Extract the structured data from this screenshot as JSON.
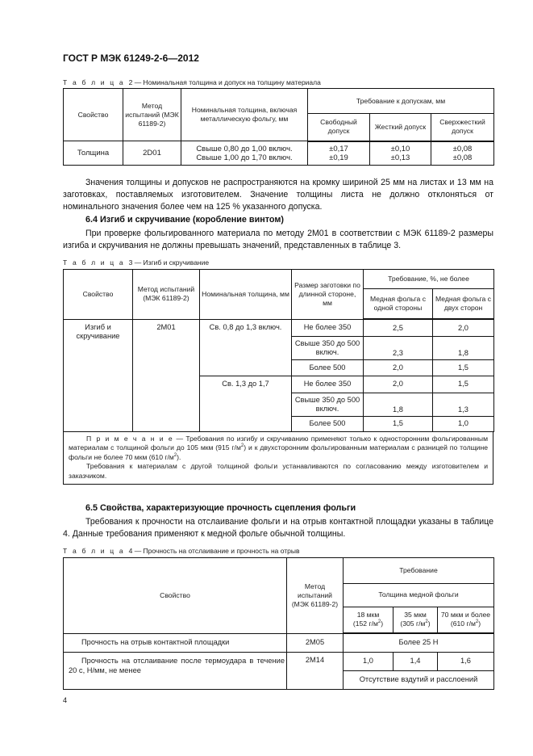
{
  "header": {
    "title": "ГОСТ Р МЭК 61249-2-6—2012"
  },
  "table2": {
    "caption_prefix": "Т а б л и ц а",
    "caption": "2 — Номинальная толщина и допуск на толщину материала",
    "headers": {
      "property": "Свойство",
      "method": "Метод испытаний (МЭК 61189-2)",
      "nominal": "Номинальная толщина, включая металлическую фольгу, мм",
      "requirement": "Требование к допускам, мм",
      "free": "Свободный допуск",
      "hard": "Жесткий допуск",
      "superhard": "Сверхжесткий допуск"
    },
    "row": {
      "property": "Толщина",
      "method": "2D01",
      "nominal": [
        "Свыше 0,80 до 1,00 включ.",
        "Свыше 1,00 до 1,70 включ."
      ],
      "free": [
        "±0,17",
        "±0,19"
      ],
      "hard": [
        "±0,10",
        "±0,13"
      ],
      "superhard": [
        "±0,08",
        "±0,08"
      ]
    }
  },
  "paragraph1": "Значения толщины и допусков не распространяются на кромку шириной 25 мм на листах и 13 мм на заготовках, поставляемых изготовителем. Значение толщины листа не должно отклоняться от номинального значения более чем на 125 % указанного допуска.",
  "section64": {
    "heading": "6.4 Изгиб и скручивание (коробление винтом)",
    "text": "При проверке фольгированного материала по методу 2М01 в соответствии с МЭК 61189-2 размеры изгиба и скручивания не должны превышать значений, представленных в таблице 3."
  },
  "table3": {
    "caption_prefix": "Т а б л и ц а",
    "caption": "3 — Изгиб и скручивание",
    "headers": {
      "property": "Свойство",
      "method": "Метод испытаний (МЭК 61189-2)",
      "nominal": "Номинальная толщина, мм",
      "size": "Размер заготовки по длинной стороне, мм",
      "requirement": "Требование, %, не более",
      "one_side": "Медная фольга с одной стороны",
      "two_sides": "Медная фольга с двух сторон"
    },
    "property": "Изгиб и скручивание",
    "method": "2М01",
    "groups": [
      {
        "nominal": "Св. 0,8 до 1,3 включ.",
        "rows": [
          {
            "size": "Не более 350",
            "one": "2,5",
            "two": "2,0"
          },
          {
            "size": "Свыше 350 до 500 включ.",
            "one": "2,3",
            "two": "1,8"
          },
          {
            "size": "Более 500",
            "one": "2,0",
            "two": "1,5"
          }
        ]
      },
      {
        "nominal": "Св. 1,3 до 1,7",
        "rows": [
          {
            "size": "Не более 350",
            "one": "2,0",
            "two": "1,5"
          },
          {
            "size": "Свыше 350 до 500 включ.",
            "one": "1,8",
            "two": "1,3"
          },
          {
            "size": "Более 500",
            "one": "1,5",
            "two": "1,0"
          }
        ]
      }
    ],
    "note": {
      "label": "П р и м е ч а н и е",
      "text1a": " — Требования по изгибу и скручиванию применяют только к односторонним фольгированным материалам с толщиной фольги до 105 мкм (915 г/м",
      "text1b": ") и к двухсторонним фольгированным материалам с разницей по толщине фольги не более 70 мкм (610 г/м",
      "text1c": ").",
      "sup": "2",
      "text2": "Требования к материалам с другой толщиной фольги устанавливаются по согласованию между изготовителем и заказчиком."
    }
  },
  "section65": {
    "heading": "6.5 Свойства, характеризующие прочность сцепления фольги",
    "text": "Требования к прочности на отслаивание фольги и на отрыв контактной площадки указаны в таблице 4. Данные требования применяют к медной фольге обычной толщины."
  },
  "table4": {
    "caption_prefix": "Т а б л и ц а",
    "caption": "4 — Прочность на отслаивание и прочность на отрыв",
    "headers": {
      "property": "Свойство",
      "method": "Метод испытаний (МЭК 61189-2)",
      "requirement": "Требование",
      "thickness": "Толщина медной фольги",
      "c1a": "18 мкм",
      "c1b": "(152 г/м",
      "c2a": "35 мкм",
      "c2b": "(305 г/м",
      "c3a": "70 мкм и более",
      "c3b": "(610 г/м",
      "sup": "2",
      "close": ")"
    },
    "rows": [
      {
        "property": "Прочность на отрыв контактной площадки",
        "method": "2М05",
        "value": "Более 25 Н"
      },
      {
        "property": "Прочность на отслаивание после термоудара в течение 20 с, Н/мм, не менее",
        "method": "2М14",
        "v1": "1,0",
        "v2": "1,4",
        "v3": "1,6",
        "extra": "Отсутствие вздутий и расслоений"
      }
    ]
  },
  "footer": {
    "page_number": "4"
  }
}
